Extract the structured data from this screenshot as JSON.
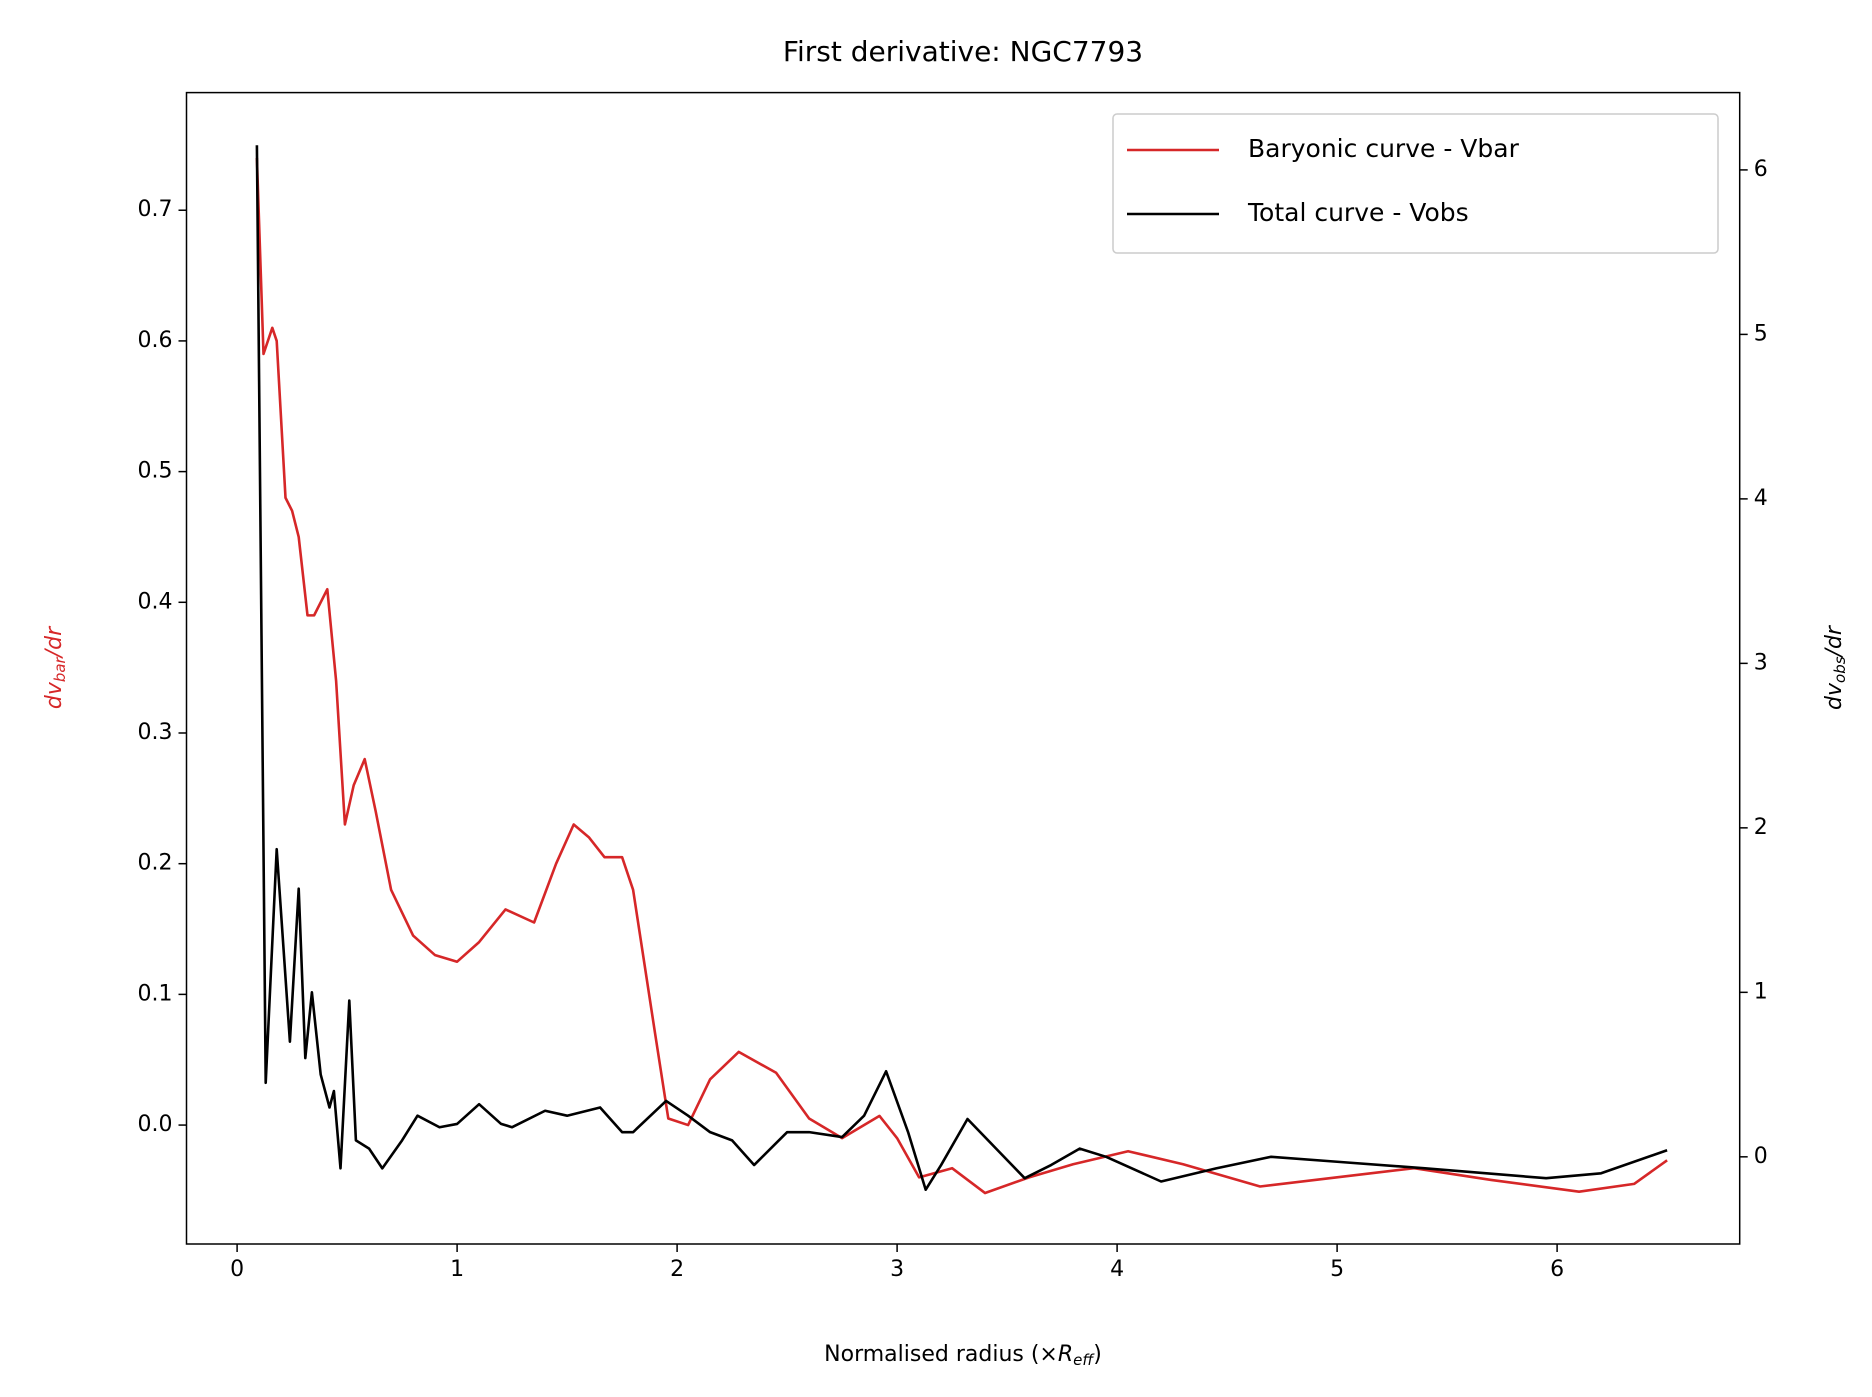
{
  "chart_data": {
    "type": "line",
    "title": "First derivative: NGC7793",
    "x_label": {
      "main": "Normalised radius (×",
      "var": "R",
      "sub": "eff",
      "rest": ")"
    },
    "y_label": {
      "main": "dv",
      "sub": "bar",
      "rest": "/dr"
    },
    "y2_label": {
      "main": "dv",
      "sub": "obs",
      "rest": "/dr"
    },
    "xlim": [
      -0.23,
      6.83
    ],
    "xticks": [
      0,
      1,
      2,
      3,
      4,
      5,
      6
    ],
    "ylim": [
      -0.091,
      0.79
    ],
    "yticks": [
      {
        "value": 0,
        "label": "0.0"
      },
      0.1,
      0.2,
      0.3,
      0.4,
      0.5,
      0.6,
      0.7
    ],
    "y2lim": [
      -0.53,
      6.47
    ],
    "y2ticks": [
      0,
      1,
      2,
      3,
      4,
      5,
      6
    ],
    "left_axis_color": "#d62728",
    "legend": "upper right",
    "series": [
      {
        "name": "Baryonic curve - Vbar",
        "color": "#d62728",
        "axis": "y",
        "x": [
          0.09,
          0.12,
          0.16,
          0.18,
          0.22,
          0.25,
          0.28,
          0.32,
          0.35,
          0.38,
          0.41,
          0.45,
          0.49,
          0.53,
          0.58,
          0.63,
          0.7,
          0.8,
          0.9,
          1.0,
          1.1,
          1.22,
          1.35,
          1.45,
          1.53,
          1.6,
          1.67,
          1.75,
          1.8,
          1.9,
          1.96,
          2.05,
          2.15,
          2.28,
          2.45,
          2.6,
          2.75,
          2.92,
          3.0,
          3.1,
          3.25,
          3.4,
          3.6,
          3.8,
          4.05,
          4.3,
          4.65,
          5.0,
          5.35,
          5.7,
          6.1,
          6.35,
          6.5
        ],
        "values": [
          0.74,
          0.59,
          0.61,
          0.6,
          0.48,
          0.47,
          0.45,
          0.39,
          0.39,
          0.4,
          0.41,
          0.34,
          0.23,
          0.26,
          0.28,
          0.24,
          0.18,
          0.145,
          0.13,
          0.125,
          0.14,
          0.165,
          0.155,
          0.2,
          0.23,
          0.22,
          0.205,
          0.205,
          0.18,
          0.07,
          0.005,
          0.0,
          0.035,
          0.056,
          0.04,
          0.005,
          -0.01,
          0.007,
          -0.01,
          -0.04,
          -0.033,
          -0.052,
          -0.04,
          -0.03,
          -0.02,
          -0.03,
          -0.047,
          -0.04,
          -0.033,
          -0.042,
          -0.051,
          -0.045,
          -0.027
        ]
      },
      {
        "name": "Total curve - Vobs",
        "color": "#000000",
        "axis": "y2",
        "x": [
          0.09,
          0.13,
          0.18,
          0.24,
          0.28,
          0.31,
          0.34,
          0.38,
          0.42,
          0.44,
          0.47,
          0.51,
          0.54,
          0.6,
          0.66,
          0.75,
          0.82,
          0.92,
          1.0,
          1.1,
          1.2,
          1.25,
          1.4,
          1.5,
          1.65,
          1.75,
          1.8,
          1.95,
          2.05,
          2.15,
          2.25,
          2.35,
          2.5,
          2.6,
          2.75,
          2.85,
          2.95,
          3.05,
          3.13,
          3.2,
          3.32,
          3.45,
          3.58,
          3.7,
          3.83,
          3.95,
          4.2,
          4.45,
          4.7,
          5.0,
          5.4,
          5.95,
          6.2,
          6.5
        ],
        "values": [
          6.15,
          0.45,
          1.87,
          0.7,
          1.63,
          0.6,
          1.0,
          0.5,
          0.3,
          0.4,
          -0.07,
          0.95,
          0.1,
          0.05,
          -0.07,
          0.1,
          0.25,
          0.18,
          0.2,
          0.32,
          0.2,
          0.18,
          0.28,
          0.25,
          0.3,
          0.15,
          0.15,
          0.34,
          0.25,
          0.15,
          0.1,
          -0.05,
          0.15,
          0.15,
          0.12,
          0.25,
          0.52,
          0.15,
          -0.2,
          -0.05,
          0.23,
          0.05,
          -0.13,
          -0.05,
          0.05,
          0.0,
          -0.15,
          -0.07,
          0.0,
          -0.03,
          -0.07,
          -0.13,
          -0.1,
          0.04
        ]
      }
    ]
  }
}
